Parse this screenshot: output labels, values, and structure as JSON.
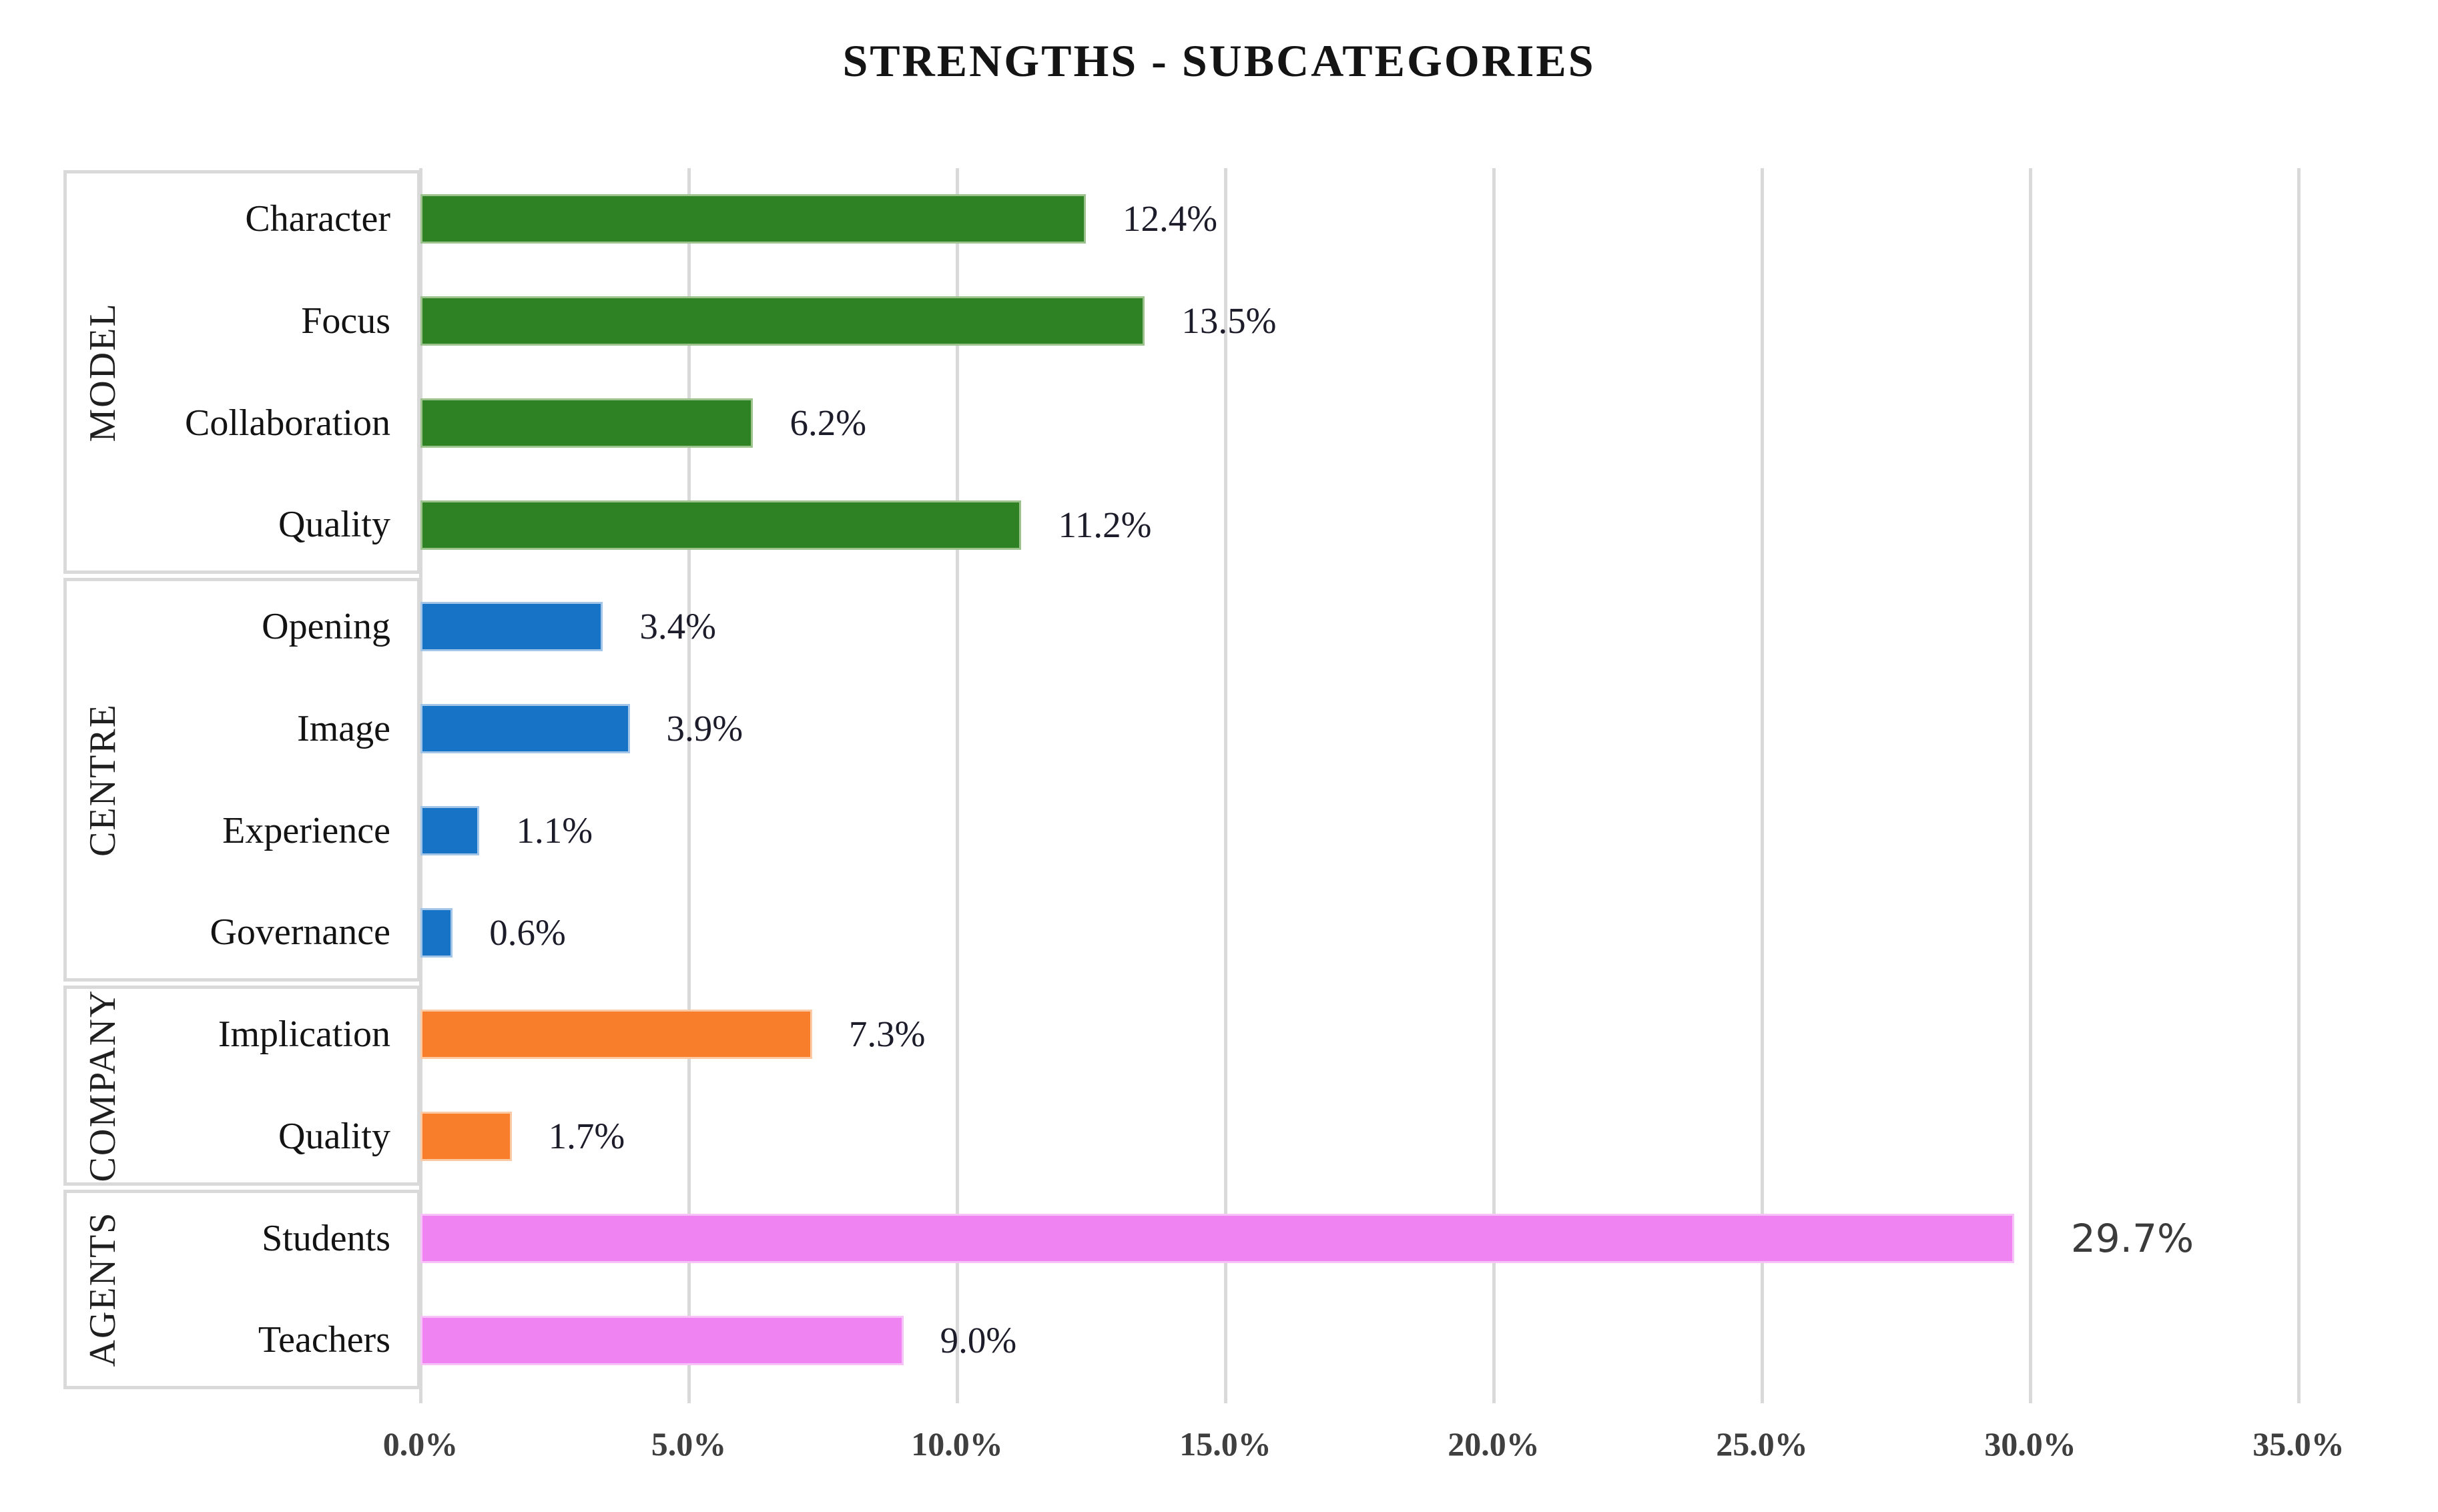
{
  "title": "STRENGTHS - SUBCATEGORIES",
  "x_axis": {
    "ticks": [
      "0.0%",
      "5.0%",
      "10.0%",
      "15.0%",
      "20.0%",
      "25.0%",
      "30.0%",
      "35.0%"
    ],
    "tick_step_pct": 5.0,
    "max_tick_pct": 35.0
  },
  "colors": {
    "gridline": "#d9d9d9",
    "box_border": "#d9d9d9",
    "model_green": "#2F8224",
    "centre_blue": "#1773C6",
    "company_orange": "#F87E2B",
    "agents_violet": "#F083F2"
  },
  "chart_data": {
    "type": "bar",
    "orientation": "horizontal",
    "title": "STRENGTHS - SUBCATEGORIES",
    "xlabel": "",
    "ylabel": "",
    "xlim": [
      0,
      36.5
    ],
    "grid": "vertical",
    "legend": "none",
    "groups": [
      {
        "name": "MODEL",
        "color": "#2F8224",
        "edge_color": "#9CC38E",
        "items": [
          {
            "label": "Character",
            "value": 12.4,
            "value_label": "12.4%"
          },
          {
            "label": "Focus",
            "value": 13.5,
            "value_label": "13.5%"
          },
          {
            "label": "Collaboration",
            "value": 6.2,
            "value_label": "6.2%"
          },
          {
            "label": "Quality",
            "value": 11.2,
            "value_label": "11.2%"
          }
        ]
      },
      {
        "name": "CENTRE",
        "color": "#1773C6",
        "edge_color": "#A3C6E8",
        "items": [
          {
            "label": "Opening",
            "value": 3.4,
            "value_label": "3.4%"
          },
          {
            "label": "Image",
            "value": 3.9,
            "value_label": "3.9%"
          },
          {
            "label": "Experience",
            "value": 1.1,
            "value_label": "1.1%"
          },
          {
            "label": "Governance",
            "value": 0.6,
            "value_label": "0.6%"
          }
        ]
      },
      {
        "name": "COMPANY",
        "color": "#F87E2B",
        "edge_color": "#FBC9A4",
        "items": [
          {
            "label": "Implication",
            "value": 7.3,
            "value_label": "7.3%"
          },
          {
            "label": "Quality",
            "value": 1.7,
            "value_label": "1.7%"
          }
        ]
      },
      {
        "name": "AGENTS",
        "color": "#F083F2",
        "edge_color": "#F7C2F8",
        "items": [
          {
            "label": "Students",
            "value": 29.7,
            "value_label": "29.7%",
            "value_label_style": "sans"
          },
          {
            "label": "Teachers",
            "value": 9.0,
            "value_label": "9.0%"
          }
        ]
      }
    ]
  }
}
